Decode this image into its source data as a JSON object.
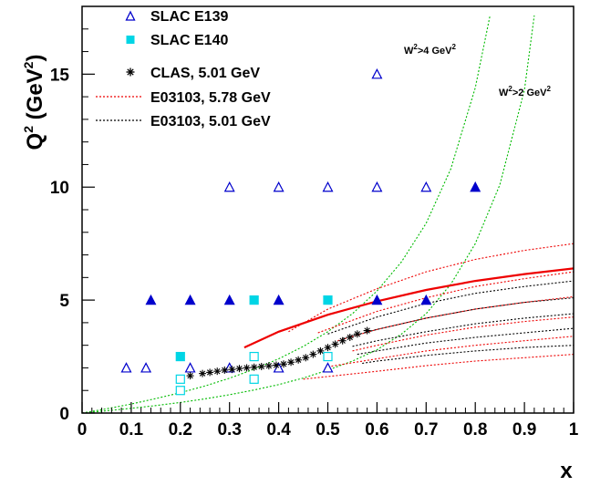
{
  "chart_data": {
    "type": "scatter",
    "xlabel": "x",
    "ylabel": "Q",
    "ylabel_sup": "2",
    "ylabel_unit_pre": " (GeV",
    "ylabel_unit_sup": "2",
    "ylabel_unit_post": ")",
    "xlim": [
      0,
      1
    ],
    "ylim": [
      0,
      18
    ],
    "x_ticks": [
      {
        "value": 0,
        "label": "0"
      },
      {
        "value": 0.1,
        "label": "0.1"
      },
      {
        "value": 0.2,
        "label": "0.2"
      },
      {
        "value": 0.3,
        "label": "0.3"
      },
      {
        "value": 0.4,
        "label": "0.4"
      },
      {
        "value": 0.5,
        "label": "0.5"
      },
      {
        "value": 0.6,
        "label": "0.6"
      },
      {
        "value": 0.7,
        "label": "0.7"
      },
      {
        "value": 0.8,
        "label": "0.8"
      },
      {
        "value": 0.9,
        "label": "0.9"
      },
      {
        "value": 1,
        "label": "1"
      }
    ],
    "y_ticks": [
      {
        "value": 0,
        "label": "0"
      },
      {
        "value": 5,
        "label": "5"
      },
      {
        "value": 10,
        "label": "10"
      },
      {
        "value": 15,
        "label": "15"
      }
    ],
    "legend_position": "top-left",
    "series": [
      {
        "name": "SLAC E139",
        "marker": "triangle-open",
        "color": "#0000cc",
        "points": [
          {
            "x": 0.09,
            "y": 2
          },
          {
            "x": 0.13,
            "y": 2
          },
          {
            "x": 0.22,
            "y": 2
          },
          {
            "x": 0.3,
            "y": 2
          },
          {
            "x": 0.4,
            "y": 2
          },
          {
            "x": 0.5,
            "y": 2
          },
          {
            "x": 0.3,
            "y": 10
          },
          {
            "x": 0.4,
            "y": 10
          },
          {
            "x": 0.5,
            "y": 10
          },
          {
            "x": 0.6,
            "y": 10
          },
          {
            "x": 0.7,
            "y": 10
          },
          {
            "x": 0.6,
            "y": 15
          }
        ]
      },
      {
        "name": "",
        "marker": "triangle-filled",
        "color": "#0000cc",
        "points": [
          {
            "x": 0.14,
            "y": 5
          },
          {
            "x": 0.22,
            "y": 5
          },
          {
            "x": 0.3,
            "y": 5
          },
          {
            "x": 0.4,
            "y": 5
          },
          {
            "x": 0.6,
            "y": 5
          },
          {
            "x": 0.7,
            "y": 5
          },
          {
            "x": 0.8,
            "y": 10
          }
        ]
      },
      {
        "name": "SLAC E140",
        "marker": "square-filled",
        "color": "#00d5e5",
        "points": [
          {
            "x": 0.2,
            "y": 2.5
          },
          {
            "x": 0.35,
            "y": 5
          },
          {
            "x": 0.5,
            "y": 5
          }
        ]
      },
      {
        "name": "",
        "marker": "square-open",
        "color": "#00d5e5",
        "points": [
          {
            "x": 0.2,
            "y": 1
          },
          {
            "x": 0.2,
            "y": 1.5
          },
          {
            "x": 0.35,
            "y": 1.5
          },
          {
            "x": 0.35,
            "y": 2.5
          },
          {
            "x": 0.5,
            "y": 2.5
          }
        ]
      },
      {
        "name": "CLAS, 5.01 GeV",
        "marker": "star",
        "color": "#000000",
        "points": [
          {
            "x": 0.22,
            "y": 1.65
          },
          {
            "x": 0.245,
            "y": 1.75
          },
          {
            "x": 0.26,
            "y": 1.8
          },
          {
            "x": 0.275,
            "y": 1.85
          },
          {
            "x": 0.29,
            "y": 1.9
          },
          {
            "x": 0.305,
            "y": 1.93
          },
          {
            "x": 0.32,
            "y": 1.97
          },
          {
            "x": 0.335,
            "y": 2.0
          },
          {
            "x": 0.35,
            "y": 2.03
          },
          {
            "x": 0.365,
            "y": 2.06
          },
          {
            "x": 0.38,
            "y": 2.09
          },
          {
            "x": 0.395,
            "y": 2.12
          },
          {
            "x": 0.41,
            "y": 2.17
          },
          {
            "x": 0.425,
            "y": 2.25
          },
          {
            "x": 0.44,
            "y": 2.35
          },
          {
            "x": 0.455,
            "y": 2.45
          },
          {
            "x": 0.47,
            "y": 2.6
          },
          {
            "x": 0.485,
            "y": 2.75
          },
          {
            "x": 0.5,
            "y": 2.9
          },
          {
            "x": 0.515,
            "y": 3.05
          },
          {
            "x": 0.53,
            "y": 3.2
          },
          {
            "x": 0.545,
            "y": 3.35
          },
          {
            "x": 0.56,
            "y": 3.5
          },
          {
            "x": 0.58,
            "y": 3.65
          }
        ]
      }
    ],
    "legend": [
      {
        "label": "SLAC E139",
        "symbol": "triangle-open",
        "color": "#0000cc"
      },
      {
        "label": "SLAC E140",
        "symbol": "square-filled",
        "color": "#00d5e5"
      },
      {
        "label": "CLAS, 5.01 GeV",
        "symbol": "star",
        "color": "#000000"
      },
      {
        "label": "E03103, 5.78 GeV",
        "symbol": "dotted-line",
        "color": "#ff0000"
      },
      {
        "label": "E03103, 5.01 GeV",
        "symbol": "dotted-line",
        "color": "#000000"
      }
    ],
    "curves": [
      {
        "kind": "w2-boundary",
        "color": "#00bb00",
        "style": "dotted",
        "points": [
          [
            0,
            0
          ],
          [
            0.05,
            0.19
          ],
          [
            0.1,
            0.4
          ],
          [
            0.15,
            0.64
          ],
          [
            0.2,
            0.9
          ],
          [
            0.25,
            1.2
          ],
          [
            0.3,
            1.54
          ],
          [
            0.35,
            1.94
          ],
          [
            0.4,
            2.4
          ],
          [
            0.45,
            2.95
          ],
          [
            0.5,
            3.6
          ],
          [
            0.55,
            4.4
          ],
          [
            0.6,
            5.4
          ],
          [
            0.65,
            6.7
          ],
          [
            0.7,
            8.4
          ],
          [
            0.75,
            10.8
          ],
          [
            0.8,
            14.4
          ],
          [
            0.83,
            17.6
          ]
        ]
      },
      {
        "kind": "w2-boundary",
        "color": "#00bb00",
        "style": "dotted",
        "points": [
          [
            0,
            0
          ],
          [
            0.05,
            0.1
          ],
          [
            0.1,
            0.21
          ],
          [
            0.15,
            0.33
          ],
          [
            0.2,
            0.47
          ],
          [
            0.25,
            0.63
          ],
          [
            0.3,
            0.81
          ],
          [
            0.35,
            1.02
          ],
          [
            0.4,
            1.26
          ],
          [
            0.45,
            1.55
          ],
          [
            0.5,
            1.9
          ],
          [
            0.55,
            2.3
          ],
          [
            0.6,
            2.8
          ],
          [
            0.65,
            3.5
          ],
          [
            0.7,
            4.4
          ],
          [
            0.75,
            5.7
          ],
          [
            0.8,
            7.5
          ],
          [
            0.85,
            10.1
          ],
          [
            0.9,
            14.3
          ],
          [
            0.92,
            17.6
          ]
        ]
      },
      {
        "kind": "E03103-5.78-main",
        "color": "#ee0000",
        "style": "solid",
        "points": [
          [
            0.33,
            2.9
          ],
          [
            0.4,
            3.6
          ],
          [
            0.5,
            4.35
          ],
          [
            0.6,
            4.95
          ],
          [
            0.7,
            5.45
          ],
          [
            0.8,
            5.85
          ],
          [
            0.9,
            6.15
          ],
          [
            1.0,
            6.4
          ]
        ]
      },
      {
        "kind": "E03103-5.78",
        "color": "#ee0000",
        "style": "dotted",
        "points": [
          [
            0.42,
            3.6
          ],
          [
            0.5,
            4.6
          ],
          [
            0.6,
            5.5
          ],
          [
            0.7,
            6.25
          ],
          [
            0.8,
            6.8
          ],
          [
            0.9,
            7.2
          ],
          [
            1.0,
            7.5
          ]
        ]
      },
      {
        "kind": "E03103-5.78",
        "color": "#ee0000",
        "style": "dotted",
        "points": [
          [
            0.48,
            3.55
          ],
          [
            0.6,
            4.5
          ],
          [
            0.7,
            5.1
          ],
          [
            0.8,
            5.6
          ],
          [
            0.9,
            5.95
          ],
          [
            1.0,
            6.25
          ]
        ]
      },
      {
        "kind": "E03103-5.78",
        "color": "#ee0000",
        "style": "dotted",
        "points": [
          [
            0.52,
            3.2
          ],
          [
            0.6,
            3.7
          ],
          [
            0.7,
            4.2
          ],
          [
            0.8,
            4.6
          ],
          [
            0.9,
            4.9
          ],
          [
            1.0,
            5.15
          ]
        ]
      },
      {
        "kind": "E03103-5.78",
        "color": "#ee0000",
        "style": "dotted",
        "points": [
          [
            0.55,
            2.75
          ],
          [
            0.6,
            3.0
          ],
          [
            0.7,
            3.45
          ],
          [
            0.8,
            3.8
          ],
          [
            0.9,
            4.05
          ],
          [
            1.0,
            4.25
          ]
        ]
      },
      {
        "kind": "E03103-5.78",
        "color": "#ee0000",
        "style": "dotted",
        "points": [
          [
            0.5,
            2.05
          ],
          [
            0.6,
            2.4
          ],
          [
            0.7,
            2.75
          ],
          [
            0.8,
            3.0
          ],
          [
            0.9,
            3.2
          ],
          [
            1.0,
            3.4
          ]
        ]
      },
      {
        "kind": "E03103-5.78",
        "color": "#ee0000",
        "style": "dotted",
        "points": [
          [
            0.45,
            1.5
          ],
          [
            0.6,
            1.85
          ],
          [
            0.7,
            2.1
          ],
          [
            0.8,
            2.3
          ],
          [
            0.9,
            2.45
          ],
          [
            1.0,
            2.6
          ]
        ]
      },
      {
        "kind": "E03103-5.01",
        "color": "#000000",
        "style": "dotted",
        "points": [
          [
            0.5,
            3.5
          ],
          [
            0.6,
            4.25
          ],
          [
            0.7,
            4.85
          ],
          [
            0.8,
            5.3
          ],
          [
            0.9,
            5.6
          ],
          [
            1.0,
            5.85
          ]
        ]
      },
      {
        "kind": "E03103-5.01",
        "color": "#000000",
        "style": "dotted",
        "points": [
          [
            0.53,
            3.3
          ],
          [
            0.6,
            3.7
          ],
          [
            0.7,
            4.2
          ],
          [
            0.8,
            4.6
          ],
          [
            0.9,
            4.9
          ],
          [
            1.0,
            5.1
          ]
        ]
      },
      {
        "kind": "E03103-5.01",
        "color": "#000000",
        "style": "dotted",
        "points": [
          [
            0.55,
            2.95
          ],
          [
            0.6,
            3.2
          ],
          [
            0.7,
            3.6
          ],
          [
            0.8,
            3.95
          ],
          [
            0.9,
            4.2
          ],
          [
            1.0,
            4.4
          ]
        ]
      },
      {
        "kind": "E03103-5.01",
        "color": "#000000",
        "style": "dotted",
        "points": [
          [
            0.56,
            2.6
          ],
          [
            0.6,
            2.75
          ],
          [
            0.7,
            3.1
          ],
          [
            0.8,
            3.35
          ],
          [
            0.9,
            3.55
          ],
          [
            1.0,
            3.75
          ]
        ]
      },
      {
        "kind": "E03103-5.01",
        "color": "#000000",
        "style": "dotted",
        "points": [
          [
            0.57,
            2.2
          ],
          [
            0.6,
            2.3
          ],
          [
            0.7,
            2.55
          ],
          [
            0.8,
            2.75
          ],
          [
            0.9,
            2.9
          ],
          [
            1.0,
            3.0
          ]
        ]
      }
    ],
    "annotations": [
      {
        "label_pre": "W",
        "label_sup1": "2",
        "label_mid": ">4 GeV",
        "label_sup2": "2",
        "x": 0.655,
        "y": 16.2
      },
      {
        "label_pre": "W",
        "label_sup1": "2",
        "label_mid": ">2 GeV",
        "label_sup2": "2",
        "x": 0.845,
        "y": 14.0
      }
    ]
  }
}
